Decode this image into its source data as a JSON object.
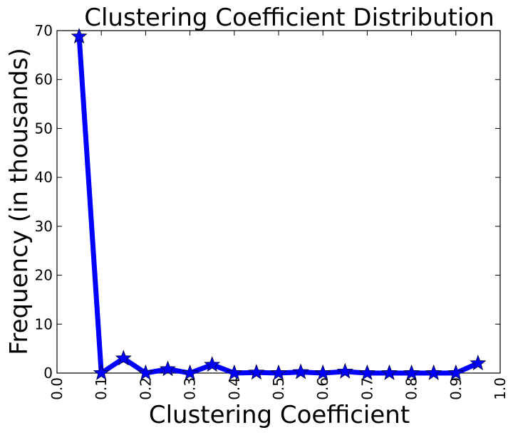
{
  "chart_data": {
    "type": "line",
    "title": "Clustering Coefficient Distribution",
    "xlabel": "Clustering Coefficient",
    "ylabel": "Frequency (in thousands)",
    "xlim": [
      0.0,
      1.0
    ],
    "ylim": [
      0,
      70
    ],
    "xticks": [
      "0.0",
      "0.1",
      "0.2",
      "0.3",
      "0.4",
      "0.5",
      "0.6",
      "0.7",
      "0.8",
      "0.9",
      "1.0"
    ],
    "yticks": [
      "0",
      "10",
      "20",
      "30",
      "40",
      "50",
      "60",
      "70"
    ],
    "grid": false,
    "marker": "star",
    "series": [
      {
        "color": "#0000ff",
        "x": [
          0.05,
          0.1,
          0.15,
          0.2,
          0.25,
          0.3,
          0.35,
          0.4,
          0.45,
          0.5,
          0.55,
          0.6,
          0.65,
          0.7,
          0.75,
          0.8,
          0.85,
          0.9,
          0.95
        ],
        "y": [
          68.8,
          0.0,
          3.0,
          0.0,
          0.8,
          0.0,
          1.7,
          0.0,
          0.1,
          0.0,
          0.2,
          0.0,
          0.3,
          0.0,
          0.0,
          0.0,
          0.0,
          0.0,
          2.0
        ]
      }
    ]
  }
}
